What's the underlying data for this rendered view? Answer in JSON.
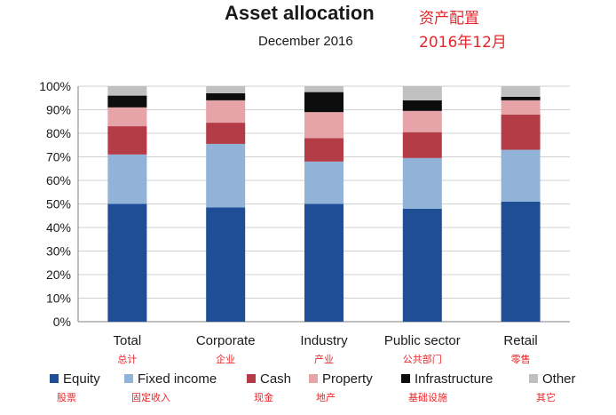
{
  "chart_data": {
    "type": "bar",
    "stacked": true,
    "title": "Asset allocation",
    "subtitle": "December 2016",
    "title_cn": "资产配置",
    "subtitle_cn": "2016年12月",
    "categories": [
      "Total",
      "Corporate",
      "Industry",
      "Public sector",
      "Retail"
    ],
    "categories_cn": [
      "总计",
      "企业",
      "产业",
      "公共部门",
      "零售"
    ],
    "ylim": [
      0,
      100
    ],
    "yticks": [
      "0%",
      "10%",
      "20%",
      "30%",
      "40%",
      "50%",
      "60%",
      "70%",
      "80%",
      "90%",
      "100%"
    ],
    "legend_position": "bottom",
    "series": [
      {
        "name": "Equity",
        "name_cn": "股票",
        "color": "#1f4e96",
        "values": [
          50,
          48.5,
          50,
          48,
          51
        ]
      },
      {
        "name": "Fixed income",
        "name_cn": "固定收入",
        "color": "#92b3d8",
        "values": [
          21,
          27,
          18,
          21.5,
          22
        ]
      },
      {
        "name": "Cash",
        "name_cn": "现金",
        "color": "#b33c46",
        "values": [
          12,
          9,
          10,
          11,
          15
        ]
      },
      {
        "name": "Property",
        "name_cn": "地产",
        "color": "#e6a3a8",
        "values": [
          8,
          9.5,
          11,
          9,
          6
        ]
      },
      {
        "name": "Infrastructure",
        "name_cn": "基础设施",
        "color": "#0d0d0d",
        "values": [
          5,
          3,
          8.5,
          4.5,
          1.5
        ]
      },
      {
        "name": "Other",
        "name_cn": "其它",
        "color": "#c0c0c0",
        "values": [
          4,
          3,
          2.5,
          6,
          4.5
        ]
      }
    ]
  }
}
